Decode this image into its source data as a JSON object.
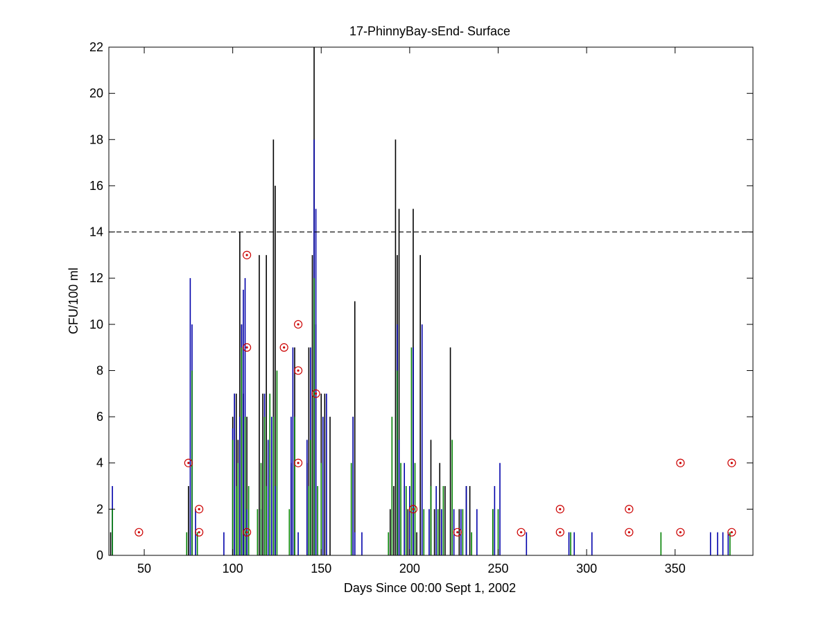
{
  "chart_data": {
    "type": "bar",
    "title": "17-PhinnyBay-sEnd- Surface",
    "xlabel": "Days Since 00:00 Sept 1, 2002",
    "ylabel": "CFU/100 ml",
    "xlim": [
      30,
      394
    ],
    "ylim": [
      0,
      22
    ],
    "xticks": [
      50,
      100,
      150,
      200,
      250,
      300,
      350
    ],
    "yticks": [
      0,
      2,
      4,
      6,
      8,
      10,
      12,
      14,
      16,
      18,
      20,
      22
    ],
    "reference_line": {
      "y": 14,
      "style": "dashed",
      "color": "#000000"
    },
    "grid": false,
    "series": [
      {
        "color": "#000000",
        "kind": "vertical-lines",
        "x": [
          31,
          75,
          100,
          101,
          102,
          103,
          104,
          105,
          106,
          108,
          115,
          117,
          119,
          121,
          123,
          124,
          133,
          135,
          142,
          143,
          145,
          146,
          147,
          150,
          152,
          155,
          168,
          169,
          189,
          191,
          192,
          193,
          194,
          197,
          199,
          202,
          204,
          206,
          212,
          214,
          217,
          220,
          223,
          228,
          232,
          234,
          247
        ],
        "values": [
          1,
          3,
          6,
          7,
          7,
          5,
          14,
          10,
          7,
          6,
          13,
          7,
          13,
          5,
          18,
          16,
          4,
          9,
          4,
          9,
          13,
          22,
          10,
          7,
          7,
          6,
          6,
          11,
          2,
          3,
          18,
          13,
          15,
          3,
          2,
          15,
          1,
          13,
          5,
          2,
          4,
          3,
          9,
          2,
          3,
          3,
          2
        ]
      },
      {
        "color": "#0000aa",
        "kind": "vertical-lines",
        "x": [
          32,
          76,
          77,
          79,
          95,
          100,
          101,
          102,
          104,
          105,
          106,
          107,
          108,
          116,
          118,
          120,
          122,
          124,
          133,
          134,
          137,
          142,
          144,
          146,
          147,
          151,
          153,
          168,
          169,
          173,
          193,
          194,
          197,
          200,
          202,
          207,
          211,
          215,
          218,
          225,
          229,
          232,
          238,
          248,
          251,
          266,
          290,
          293,
          303,
          370,
          374,
          377,
          380
        ],
        "values": [
          3,
          12,
          10,
          2,
          1,
          5.5,
          7,
          3,
          6,
          10,
          11.5,
          12,
          2,
          2,
          7,
          5,
          6,
          3,
          6,
          9,
          1,
          5,
          9,
          18,
          15,
          6,
          7,
          6,
          1,
          1,
          10,
          5,
          4,
          3,
          9,
          10,
          2,
          3,
          2,
          2,
          2,
          3,
          2,
          3,
          4,
          1,
          1,
          1,
          1,
          1,
          1,
          1,
          1
        ]
      },
      {
        "color": "#008000",
        "kind": "vertical-lines",
        "x": [
          32,
          74,
          77,
          80,
          100,
          102,
          103,
          105,
          107,
          109,
          114,
          116,
          118,
          119,
          121,
          123,
          125,
          132,
          135,
          143,
          144,
          146,
          148,
          150,
          167,
          188,
          190,
          193,
          195,
          198,
          201,
          203,
          208,
          212,
          216,
          219,
          224,
          230,
          235,
          247,
          250,
          291,
          342,
          381
        ],
        "values": [
          2,
          1,
          8,
          1,
          5,
          3,
          4,
          9,
          6,
          3,
          2,
          4,
          6,
          3,
          7,
          6,
          8,
          2,
          6,
          3,
          5,
          12,
          3,
          4,
          4,
          1,
          6,
          8,
          4,
          3,
          9,
          4,
          2,
          3,
          2,
          3,
          5,
          2,
          1,
          2,
          2,
          1,
          1,
          1
        ]
      }
    ],
    "markers": {
      "style": "red circle with dot",
      "color": "#cc0000",
      "points": [
        [
          47,
          1
        ],
        [
          75,
          4
        ],
        [
          81,
          2
        ],
        [
          81,
          1
        ],
        [
          108,
          13
        ],
        [
          108,
          9
        ],
        [
          108,
          1
        ],
        [
          129,
          9
        ],
        [
          137,
          10
        ],
        [
          137,
          8
        ],
        [
          137,
          4
        ],
        [
          147,
          7
        ],
        [
          202,
          2
        ],
        [
          227,
          1
        ],
        [
          263,
          1
        ],
        [
          285,
          2
        ],
        [
          285,
          1
        ],
        [
          324,
          2
        ],
        [
          324,
          1
        ],
        [
          353,
          4
        ],
        [
          353,
          1
        ],
        [
          382,
          4
        ],
        [
          382,
          1
        ]
      ]
    }
  }
}
